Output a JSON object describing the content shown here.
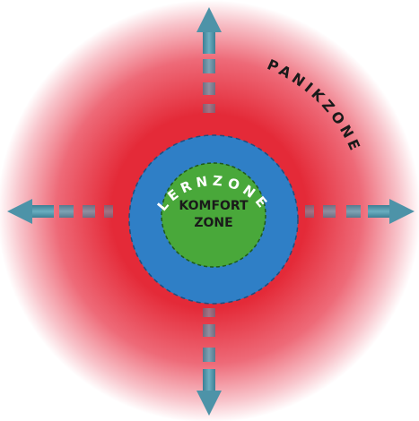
{
  "zones": {
    "outer": {
      "label": "PANIKZONE"
    },
    "middle": {
      "label": "LERNZONE"
    },
    "inner": {
      "line1": "KOMFORT",
      "line2": "ZONE"
    }
  },
  "colors": {
    "panic_red": "#e42a38",
    "learn_blue": "#2f7fc6",
    "comfort_green": "#49a83a",
    "arrow_teal": "#4d93a8",
    "label_dark": "#1a1a1a",
    "label_light": "#ffffff"
  },
  "icons": {
    "arrows": [
      "arrow-up-icon",
      "arrow-down-icon",
      "arrow-left-icon",
      "arrow-right-icon"
    ]
  }
}
